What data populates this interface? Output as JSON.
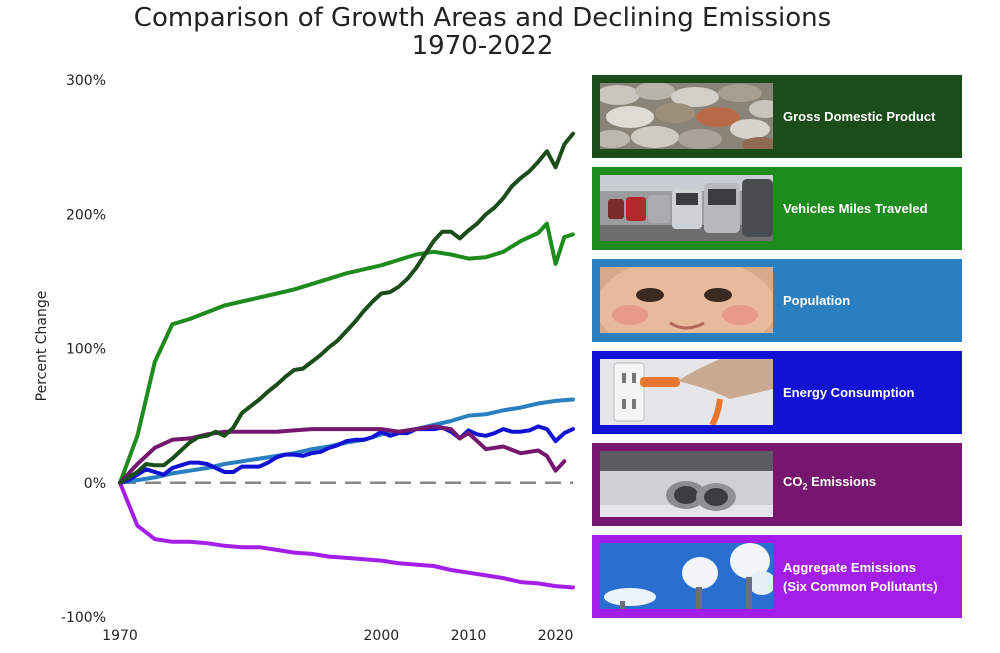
{
  "chart_data": {
    "type": "line",
    "title": "Comparison of Growth Areas and Declining Emissions",
    "subtitle": "1970-2022",
    "xlabel": "",
    "ylabel": "Percent Change",
    "xlim": [
      1970,
      2022
    ],
    "ylim": [
      -100,
      300
    ],
    "xticks": [
      1970,
      2000,
      2010,
      2020
    ],
    "xtick_labels": [
      "1970",
      "2000",
      "2010",
      "2020"
    ],
    "yticks": [
      -100,
      0,
      100,
      200,
      300
    ],
    "ytick_labels": [
      "-100%",
      "0%",
      "100%",
      "200%",
      "300%"
    ],
    "reference_line": 0,
    "series": [
      {
        "name": "Gross Domestic Product",
        "color": "#1a4d1a",
        "x": [
          1970,
          1971,
          1972,
          1973,
          1974,
          1975,
          1976,
          1977,
          1978,
          1979,
          1980,
          1981,
          1982,
          1983,
          1984,
          1985,
          1986,
          1987,
          1988,
          1989,
          1990,
          1991,
          1992,
          1993,
          1994,
          1995,
          1996,
          1997,
          1998,
          1999,
          2000,
          2001,
          2002,
          2003,
          2004,
          2005,
          2006,
          2007,
          2008,
          2009,
          2010,
          2011,
          2012,
          2013,
          2014,
          2015,
          2016,
          2017,
          2018,
          2019,
          2020,
          2021,
          2022
        ],
        "values": [
          0,
          4,
          8,
          14,
          13,
          13,
          18,
          24,
          30,
          34,
          35,
          38,
          35,
          41,
          52,
          57,
          62,
          68,
          73,
          79,
          84,
          85,
          90,
          95,
          101,
          106,
          113,
          120,
          128,
          135,
          141,
          142,
          146,
          152,
          160,
          170,
          180,
          187,
          187,
          182,
          188,
          193,
          200,
          205,
          212,
          221,
          227,
          232,
          239,
          247,
          235,
          252,
          260
        ]
      },
      {
        "name": "Vehicles Miles Traveled",
        "color": "#1d8b1d",
        "x": [
          1970,
          1972,
          1974,
          1976,
          1978,
          1980,
          1982,
          1984,
          1986,
          1988,
          1990,
          1992,
          1994,
          1996,
          1998,
          2000,
          2002,
          2004,
          2006,
          2008,
          2010,
          2012,
          2014,
          2016,
          2018,
          2019,
          2020,
          2021,
          2022
        ],
        "values": [
          0,
          35,
          90,
          118,
          122,
          127,
          132,
          135,
          138,
          141,
          144,
          148,
          152,
          156,
          159,
          162,
          166,
          170,
          172,
          170,
          167,
          168,
          172,
          180,
          186,
          193,
          163,
          183,
          185
        ]
      },
      {
        "name": "Population",
        "color": "#2a7fc0",
        "x": [
          1970,
          1972,
          1974,
          1976,
          1978,
          1980,
          1982,
          1984,
          1986,
          1988,
          1990,
          1992,
          1994,
          1996,
          1998,
          2000,
          2002,
          2004,
          2006,
          2008,
          2010,
          2012,
          2014,
          2016,
          2018,
          2020,
          2022
        ],
        "values": [
          0,
          2,
          4,
          7,
          9,
          11,
          14,
          16,
          18,
          20,
          22,
          25,
          27,
          30,
          32,
          36,
          38,
          40,
          43,
          46,
          50,
          51,
          54,
          56,
          59,
          61,
          62
        ]
      },
      {
        "name": "Energy Consumption",
        "color": "#1212d6",
        "x": [
          1970,
          1971,
          1972,
          1973,
          1974,
          1975,
          1976,
          1977,
          1978,
          1979,
          1980,
          1981,
          1982,
          1983,
          1984,
          1985,
          1986,
          1987,
          1988,
          1989,
          1990,
          1991,
          1992,
          1993,
          1994,
          1995,
          1996,
          1997,
          1998,
          1999,
          2000,
          2001,
          2002,
          2003,
          2004,
          2005,
          2006,
          2007,
          2008,
          2009,
          2010,
          2011,
          2012,
          2013,
          2014,
          2015,
          2016,
          2017,
          2018,
          2019,
          2020,
          2021,
          2022
        ],
        "values": [
          0,
          2,
          6,
          10,
          8,
          6,
          11,
          13,
          15,
          15,
          14,
          11,
          8,
          8,
          12,
          12,
          12,
          15,
          19,
          21,
          21,
          20,
          22,
          23,
          26,
          28,
          31,
          32,
          32,
          34,
          38,
          35,
          37,
          37,
          40,
          40,
          40,
          41,
          38,
          33,
          39,
          36,
          35,
          37,
          40,
          38,
          38,
          39,
          42,
          40,
          31,
          37,
          40
        ]
      },
      {
        "name": "CO₂ Emissions",
        "color": "#76176f",
        "x": [
          1970,
          1972,
          1974,
          1976,
          1978,
          1980,
          1982,
          1984,
          1986,
          1988,
          1990,
          1992,
          1994,
          1996,
          1998,
          2000,
          2002,
          2004,
          2006,
          2008,
          2009,
          2010,
          2012,
          2014,
          2016,
          2018,
          2019,
          2020,
          2021
        ],
        "values": [
          0,
          14,
          26,
          32,
          33,
          36,
          38,
          38,
          38,
          38,
          39,
          40,
          40,
          40,
          40,
          40,
          38,
          40,
          42,
          40,
          33,
          37,
          25,
          27,
          22,
          24,
          20,
          9,
          16
        ]
      },
      {
        "name": "Aggregate Emissions (Six Common Pollutants)",
        "color": "#a31ee8",
        "x": [
          1970,
          1972,
          1974,
          1976,
          1978,
          1980,
          1982,
          1984,
          1986,
          1988,
          1990,
          1992,
          1994,
          1996,
          1998,
          2000,
          2002,
          2004,
          2006,
          2008,
          2010,
          2012,
          2014,
          2016,
          2018,
          2020,
          2022
        ],
        "values": [
          0,
          -32,
          -42,
          -44,
          -44,
          -45,
          -47,
          -48,
          -48,
          -50,
          -52,
          -53,
          -55,
          -56,
          -57,
          -58,
          -60,
          -61,
          -62,
          -65,
          -67,
          -69,
          -71,
          -74,
          -75,
          -77,
          -78
        ]
      }
    ]
  },
  "legend": [
    {
      "label": "Gross Domestic Product",
      "photo": "coins-photo",
      "bg": "#1a4d1a"
    },
    {
      "label": "Vehicles Miles Traveled",
      "photo": "traffic-photo",
      "bg": "#1d8b1d"
    },
    {
      "label": "Population",
      "photo": "baby-photo",
      "bg": "#2a7fc0"
    },
    {
      "label": "Energy Consumption",
      "photo": "power-plug-photo",
      "bg": "#1212d6"
    },
    {
      "label_main": "CO",
      "label_sub": "2",
      "label_rest": " Emissions",
      "photo": "exhaust-pipes-photo",
      "bg": "#76176f"
    },
    {
      "label": "Aggregate Emissions",
      "label2": "(Six Common Pollutants)",
      "photo": "smokestacks-photo",
      "bg": "#a31ee8"
    }
  ]
}
